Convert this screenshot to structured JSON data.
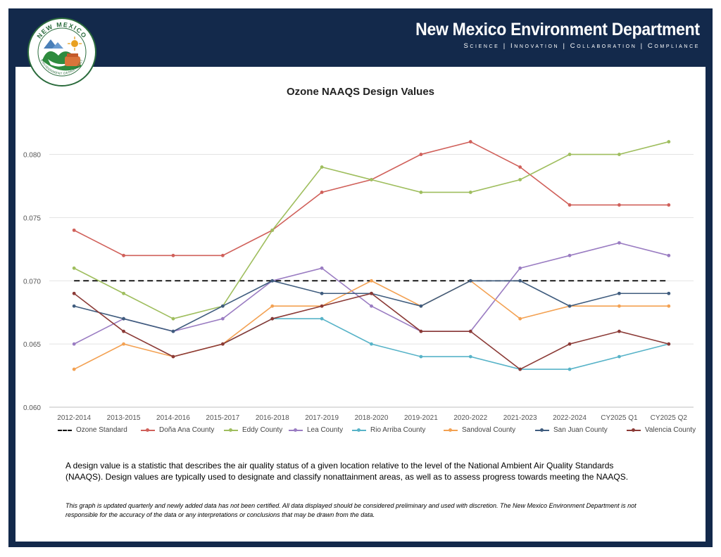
{
  "header": {
    "title": "New Mexico Environment Department",
    "tagline": "Science | Innovation | Collaboration | Compliance",
    "logo_text_top": "NEW MEXICO",
    "logo_text_bottom": "ENVIRONMENT DEPARTMENT"
  },
  "chart_data": {
    "type": "line",
    "title": "Ozone NAAQS Design Values",
    "xlabel": "",
    "ylabel": "",
    "ylim": [
      0.06,
      0.08
    ],
    "yticks": [
      "0.060",
      "0.065",
      "0.070",
      "0.075",
      "0.080"
    ],
    "grid": true,
    "legend_position": "bottom",
    "categories": [
      "2012-2014",
      "2013-2015",
      "2014-2016",
      "2015-2017",
      "2016-2018",
      "2017-2019",
      "2018-2020",
      "2019-2021",
      "2020-2022",
      "2021-2023",
      "2022-2024",
      "CY2025 Q1",
      "CY2025 Q2"
    ],
    "series": [
      {
        "name": "Ozone Standard",
        "color": "#000000",
        "dashed": true,
        "markers": false,
        "values": [
          0.07,
          0.07,
          0.07,
          0.07,
          0.07,
          0.07,
          0.07,
          0.07,
          0.07,
          0.07,
          0.07,
          0.07,
          0.07
        ]
      },
      {
        "name": "Doña Ana County",
        "color": "#d0605a",
        "values": [
          0.074,
          0.072,
          0.072,
          0.072,
          0.074,
          0.077,
          0.078,
          0.08,
          0.081,
          0.079,
          0.076,
          0.076,
          0.076
        ]
      },
      {
        "name": "Eddy County",
        "color": "#9fbe5e",
        "values": [
          0.071,
          0.069,
          0.067,
          0.068,
          0.074,
          0.079,
          0.078,
          0.077,
          0.077,
          0.078,
          0.08,
          0.08,
          0.081
        ]
      },
      {
        "name": "Lea County",
        "color": "#9a7cc2",
        "values": [
          0.065,
          0.067,
          0.066,
          0.067,
          0.07,
          0.071,
          0.068,
          0.066,
          0.066,
          0.071,
          0.072,
          0.073,
          0.072
        ]
      },
      {
        "name": "Rio Arriba County",
        "color": "#57b3c8",
        "values": [
          null,
          null,
          null,
          0.065,
          0.067,
          0.067,
          0.065,
          0.064,
          0.064,
          0.063,
          0.063,
          0.064,
          0.065
        ]
      },
      {
        "name": "Sandoval County",
        "color": "#f3a152",
        "values": [
          0.063,
          0.065,
          0.064,
          0.065,
          0.068,
          0.068,
          0.07,
          0.068,
          0.07,
          0.067,
          0.068,
          0.068,
          0.068
        ]
      },
      {
        "name": "San Juan County",
        "color": "#3f5c7e",
        "values": [
          0.068,
          0.067,
          0.066,
          0.068,
          0.07,
          0.069,
          0.069,
          0.068,
          0.07,
          0.07,
          0.068,
          0.069,
          0.069
        ]
      },
      {
        "name": "Valencia County",
        "color": "#8b3a36",
        "values": [
          0.069,
          0.066,
          0.064,
          0.065,
          0.067,
          0.068,
          0.069,
          0.066,
          0.066,
          0.063,
          0.065,
          0.066,
          0.065
        ]
      }
    ]
  },
  "description": "A design value is a statistic that describes the air quality status of a given location relative to the level of the National Ambient Air Quality Standards (NAAQS). Design values are typically used to designate and classify nonattainment areas, as well as to assess progress towards meeting the NAAQS.",
  "disclaimer": "This graph is updated quarterly and newly added data has not been certified. All data displayed should be considered preliminary and used with discretion. The New Mexico Environment Department is not responsible for the accuracy of the data or any interpretations or conclusions that may be drawn from the data."
}
